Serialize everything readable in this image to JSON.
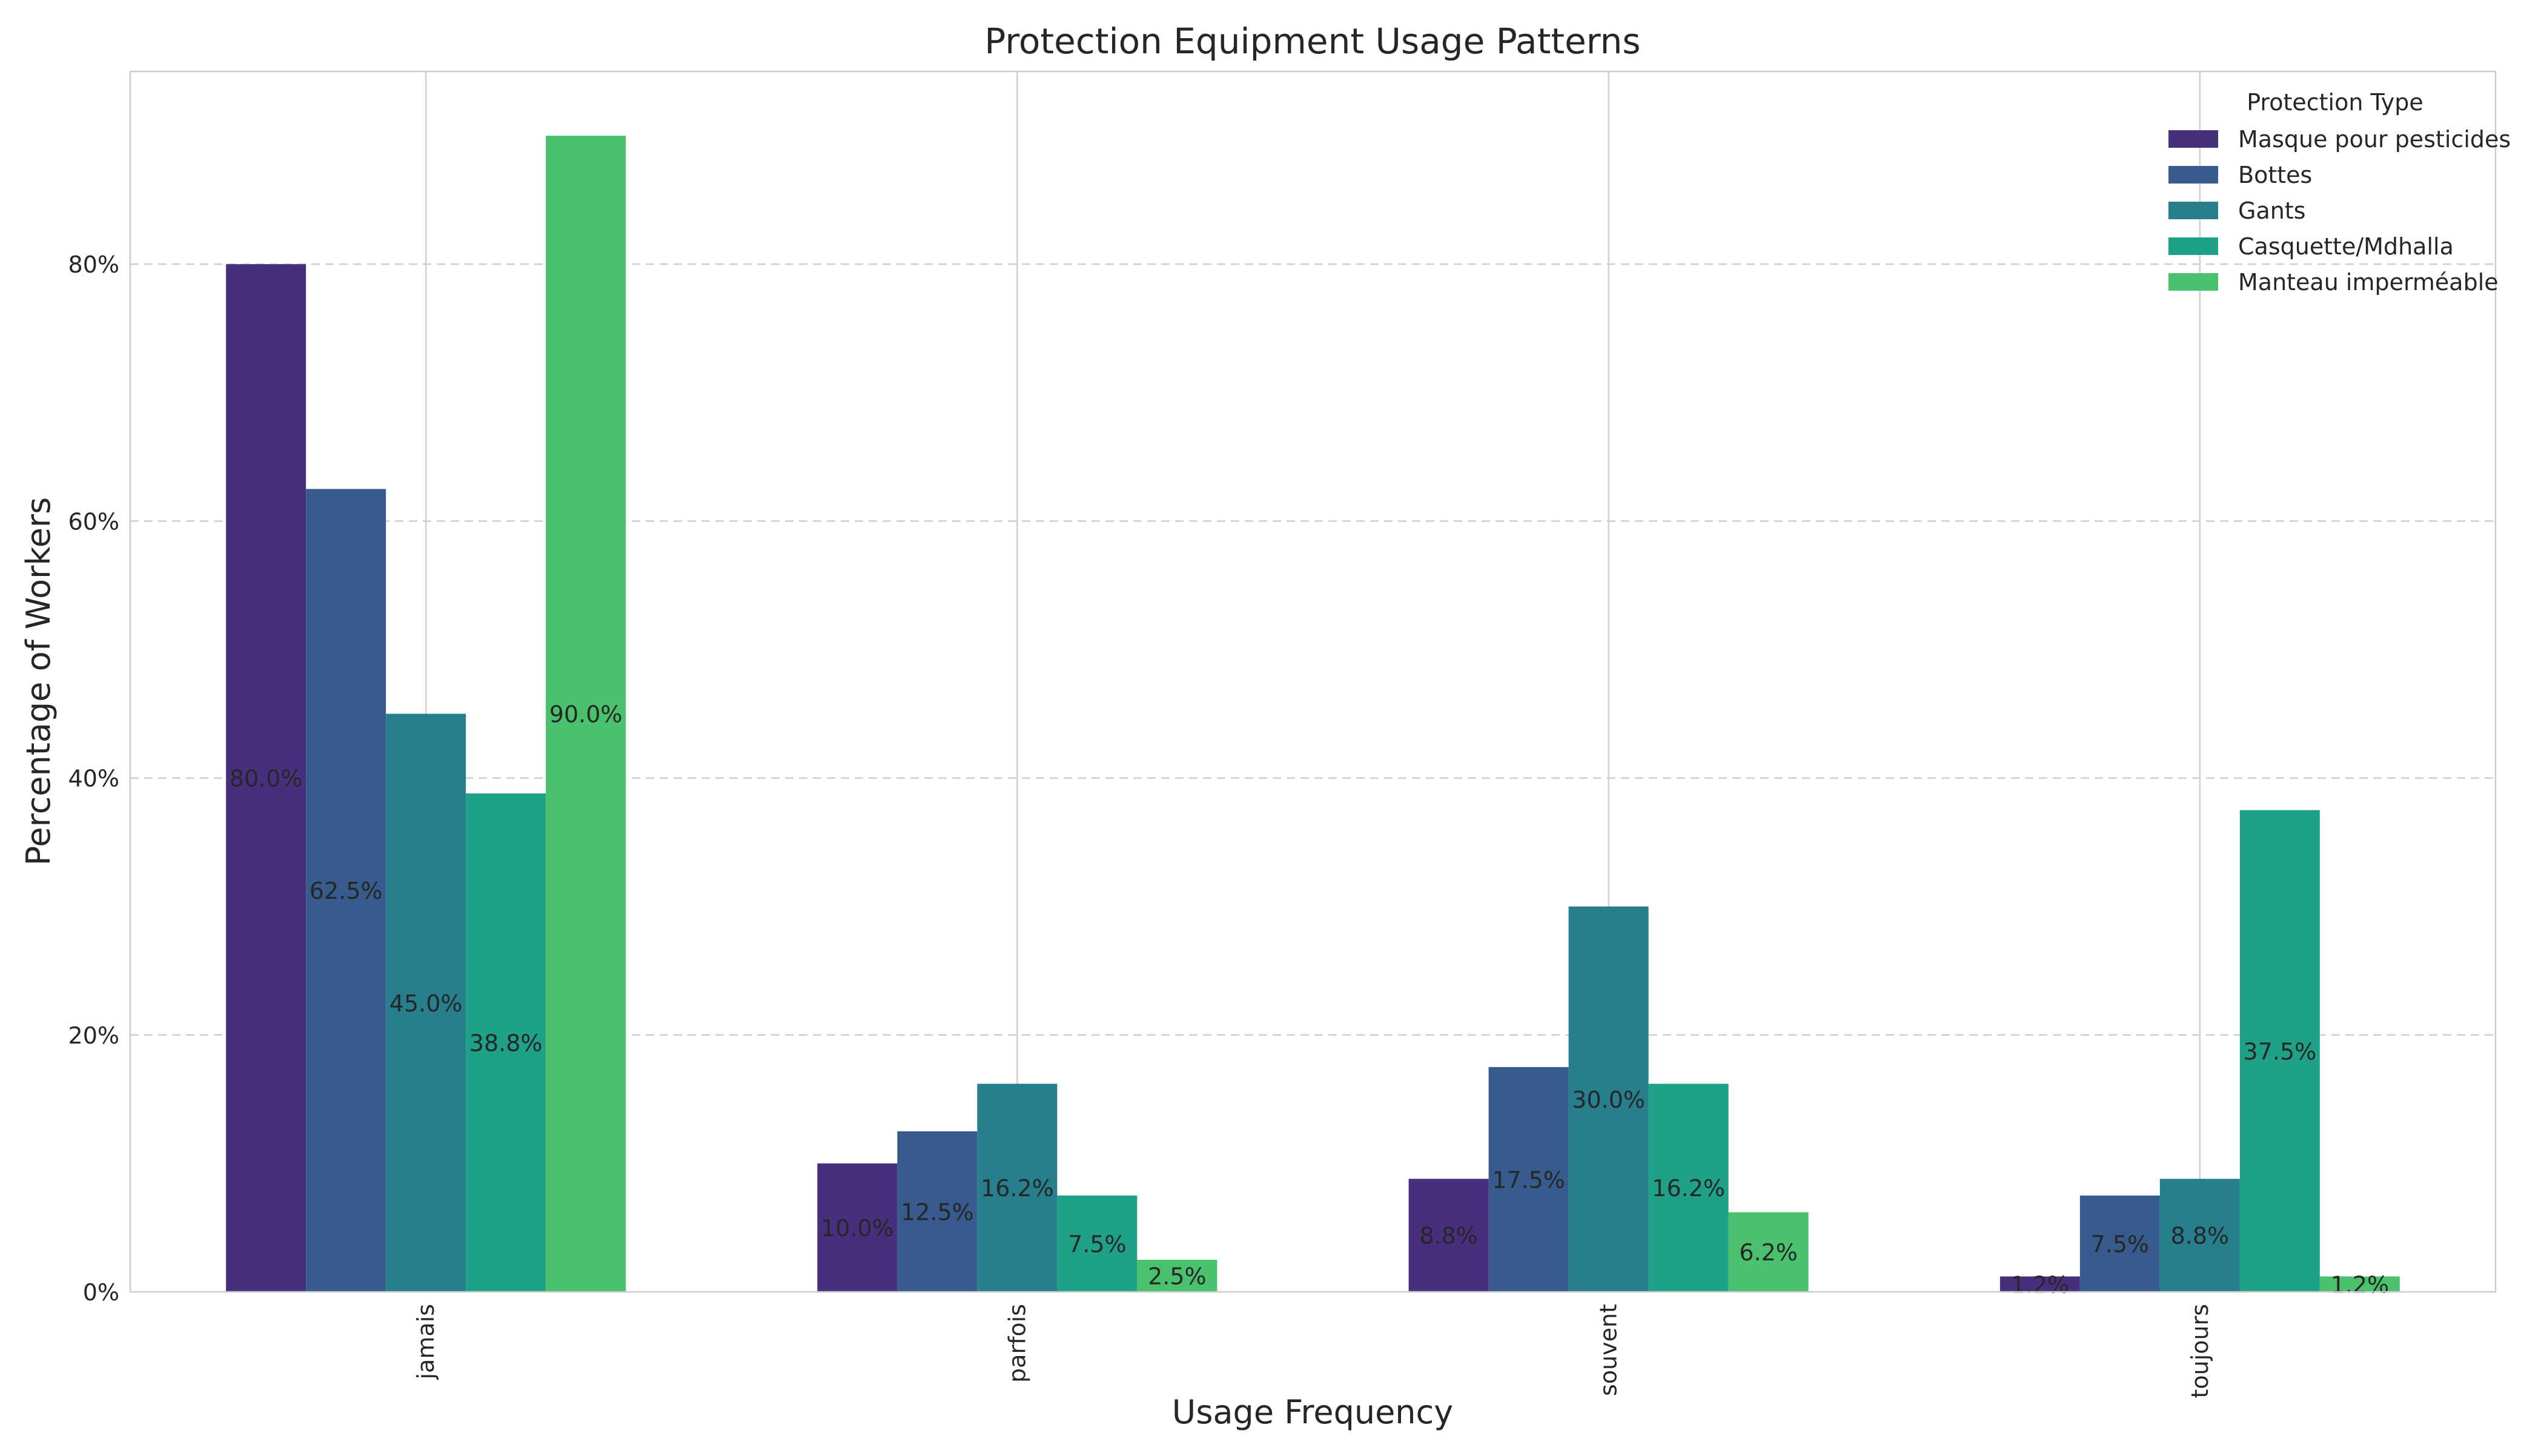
{
  "chart_data": {
    "type": "bar",
    "title": "Protection Equipment Usage Patterns",
    "xlabel": "Usage Frequency",
    "ylabel": "Percentage of Workers",
    "categories": [
      "jamais",
      "parfois",
      "souvent",
      "toujours"
    ],
    "ylim": [
      0,
      95
    ],
    "yticks": [
      0,
      20,
      40,
      60,
      80
    ],
    "ytick_labels": [
      "0%",
      "20%",
      "40%",
      "60%",
      "80%"
    ],
    "grid": true,
    "legend": {
      "title": "Protection Type",
      "placement": "top-right"
    },
    "series": [
      {
        "name": "Masque pour pesticides",
        "color": "#482f7d",
        "values": [
          80.0,
          10.0,
          8.8,
          1.2
        ],
        "labels": [
          "80.0%",
          "10.0%",
          "8.8%",
          "1.2%"
        ]
      },
      {
        "name": "Bottes",
        "color": "#365b8c",
        "values": [
          62.5,
          12.5,
          17.5,
          7.5
        ],
        "labels": [
          "62.5%",
          "12.5%",
          "17.5%",
          "7.5%"
        ]
      },
      {
        "name": "Gants",
        "color": "#277f8e",
        "values": [
          45.0,
          16.2,
          30.0,
          8.8
        ],
        "labels": [
          "45.0%",
          "16.2%",
          "30.0%",
          "8.8%"
        ]
      },
      {
        "name": "Casquette/Mdhalla",
        "color": "#1fa187",
        "values": [
          38.8,
          7.5,
          16.2,
          37.5
        ],
        "labels": [
          "38.8%",
          "7.5%",
          "16.2%",
          "37.5%"
        ]
      },
      {
        "name": "Manteau imperméable",
        "color": "#4ac16d",
        "values": [
          90.0,
          2.5,
          6.2,
          1.2
        ],
        "labels": [
          "90.0%",
          "2.5%",
          "6.2%",
          "1.2%"
        ]
      }
    ]
  }
}
